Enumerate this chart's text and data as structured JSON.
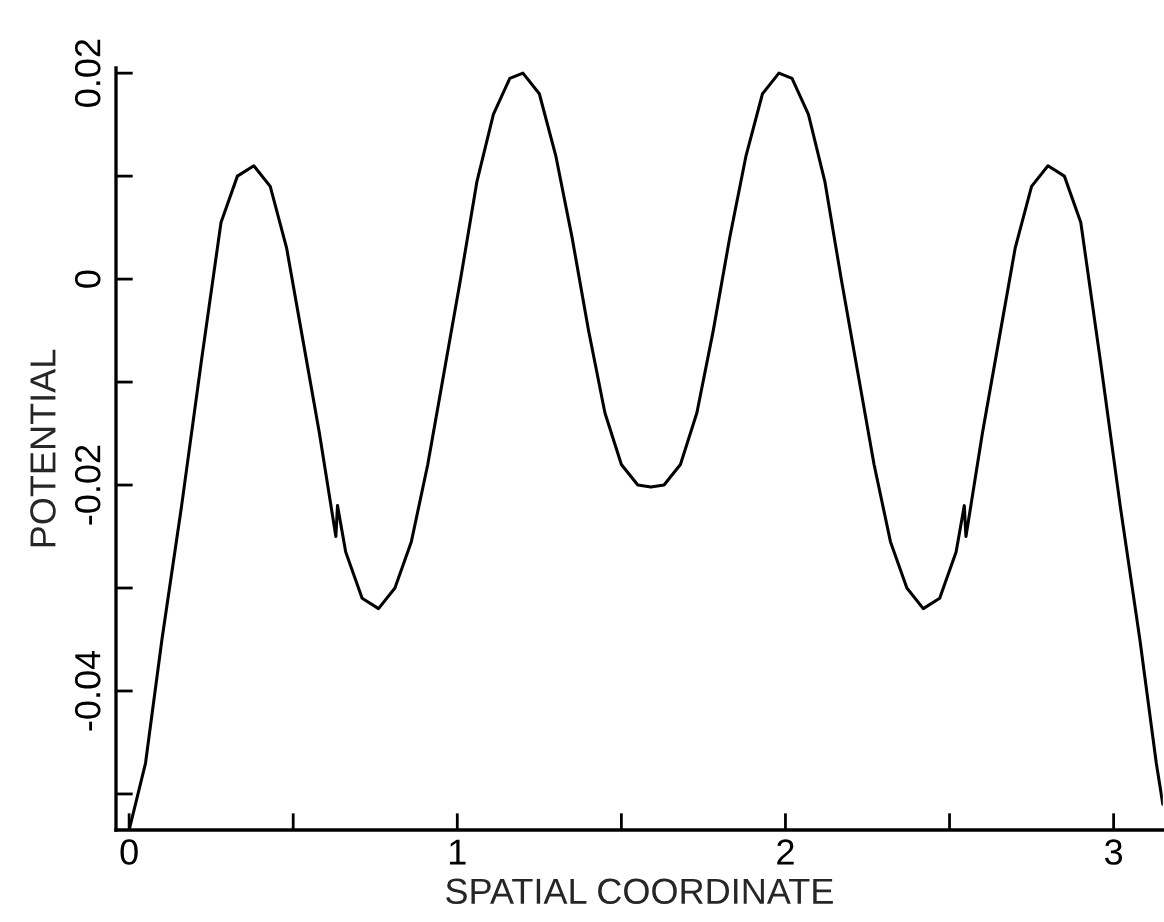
{
  "chart_data": {
    "type": "line",
    "xlabel": "SPATIAL COORDINATE",
    "ylabel": "POTENTIAL",
    "x": [
      0.0,
      0.05,
      0.1,
      0.16,
      0.22,
      0.28,
      0.33,
      0.38,
      0.43,
      0.48,
      0.53,
      0.58,
      0.63,
      0.635,
      0.66,
      0.71,
      0.76,
      0.81,
      0.86,
      0.91,
      0.96,
      1.01,
      1.06,
      1.11,
      1.16,
      1.2,
      1.25,
      1.3,
      1.35,
      1.4,
      1.45,
      1.5,
      1.55,
      1.59,
      1.63,
      1.68,
      1.73,
      1.78,
      1.83,
      1.88,
      1.93,
      1.98,
      2.02,
      2.07,
      2.12,
      2.17,
      2.22,
      2.27,
      2.32,
      2.37,
      2.42,
      2.47,
      2.52,
      2.545,
      2.55,
      2.6,
      2.65,
      2.7,
      2.75,
      2.8,
      2.85,
      2.9,
      2.96,
      3.02,
      3.08,
      3.13,
      3.15
    ],
    "series": [
      {
        "color": "#000000",
        "values": [
          -0.0535,
          -0.047,
          -0.035,
          -0.022,
          -0.008,
          0.0055,
          0.01,
          0.011,
          0.009,
          0.003,
          -0.006,
          -0.015,
          -0.025,
          -0.022,
          -0.0265,
          -0.031,
          -0.032,
          -0.03,
          -0.0255,
          -0.018,
          -0.009,
          0.0,
          0.0095,
          0.016,
          0.0195,
          0.02,
          0.018,
          0.012,
          0.004,
          -0.005,
          -0.013,
          -0.018,
          -0.02,
          -0.0202,
          -0.02,
          -0.018,
          -0.013,
          -0.005,
          0.004,
          0.012,
          0.018,
          0.02,
          0.0195,
          0.016,
          0.0095,
          0.0,
          -0.009,
          -0.018,
          -0.0255,
          -0.03,
          -0.032,
          -0.031,
          -0.0265,
          -0.022,
          -0.025,
          -0.015,
          -0.006,
          0.003,
          0.009,
          0.011,
          0.01,
          0.0055,
          -0.008,
          -0.022,
          -0.035,
          -0.047,
          -0.051
        ]
      }
    ],
    "xlim": [
      -0.04,
      3.15
    ],
    "ylim": [
      -0.0535,
      0.0205
    ],
    "xticks": [
      0,
      {
        "value": 0.5,
        "label": null
      },
      1,
      {
        "value": 1.5,
        "label": null
      },
      2,
      {
        "value": 2.5,
        "label": null
      },
      3
    ],
    "yticks": [
      {
        "value": -0.05,
        "label": null
      },
      -0.04,
      {
        "value": -0.03,
        "label": null
      },
      -0.02,
      {
        "value": -0.01,
        "label": null
      },
      0,
      {
        "value": 0.01,
        "label": null
      },
      0.02
    ],
    "grid": false,
    "legend": false,
    "marker": "none",
    "line_style": "solid"
  }
}
